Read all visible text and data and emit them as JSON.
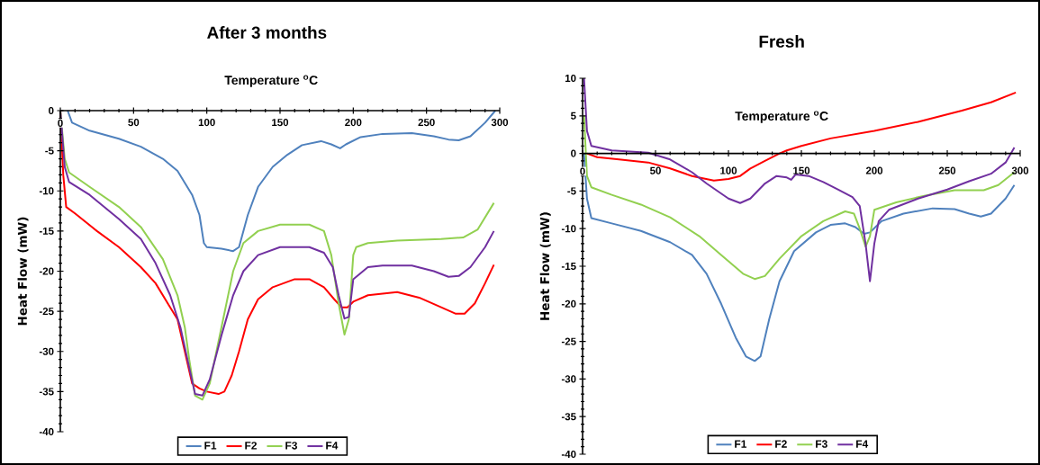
{
  "chart_data": [
    {
      "type": "line",
      "title": "After 3 months",
      "xlabel": "Temperature $^{o}$C",
      "ylabel": "Heat Flow (mW)",
      "xlim": [
        0,
        300
      ],
      "ylim": [
        -40,
        0
      ],
      "xticks": [
        0,
        50,
        100,
        150,
        200,
        250,
        300
      ],
      "yticks": [
        -40,
        -35,
        -30,
        -25,
        -20,
        -15,
        -10,
        -5,
        0
      ],
      "legend": "bottom",
      "series": [
        {
          "name": "F1",
          "color": "#4f81bd",
          "x": [
            5,
            8,
            20,
            40,
            55,
            70,
            80,
            90,
            95,
            98,
            100,
            110,
            118,
            122,
            128,
            135,
            145,
            155,
            165,
            178,
            185,
            191,
            195,
            205,
            220,
            240,
            255,
            265,
            272,
            280,
            290,
            297
          ],
          "values": [
            0,
            -1.5,
            -2.5,
            -3.5,
            -4.5,
            -6,
            -7.5,
            -10.5,
            -13,
            -16.5,
            -17,
            -17.2,
            -17.5,
            -17,
            -13,
            -9.5,
            -7,
            -5.5,
            -4.3,
            -3.8,
            -4.2,
            -4.7,
            -4.2,
            -3.3,
            -2.9,
            -2.8,
            -3.2,
            -3.6,
            -3.7,
            -3.2,
            -1.5,
            0
          ]
        },
        {
          "name": "F2",
          "color": "#ff0000",
          "x": [
            0,
            2,
            4,
            10,
            25,
            40,
            55,
            65,
            75,
            80,
            85,
            90,
            95,
            100,
            108,
            112,
            117,
            122,
            128,
            135,
            145,
            160,
            170,
            180,
            187,
            192,
            196,
            200,
            210,
            230,
            245,
            260,
            270,
            276,
            283,
            290,
            296
          ],
          "values": [
            0,
            -8,
            -12,
            -12.8,
            -15,
            -17,
            -19.5,
            -21.5,
            -24.5,
            -26,
            -30,
            -34,
            -34.6,
            -35,
            -35.3,
            -35,
            -33,
            -30,
            -26,
            -23.5,
            -22,
            -21,
            -21,
            -22,
            -23.5,
            -24.5,
            -24.5,
            -23.8,
            -23,
            -22.6,
            -23.3,
            -24.5,
            -25.3,
            -25.3,
            -24,
            -21.5,
            -19.2
          ]
        },
        {
          "name": "F3",
          "color": "#92d050",
          "x": [
            0,
            3,
            6,
            20,
            40,
            55,
            70,
            80,
            85,
            88,
            92,
            97,
            102,
            110,
            118,
            125,
            135,
            150,
            170,
            180,
            185,
            190,
            194,
            197,
            200,
            202,
            210,
            230,
            260,
            275,
            285,
            296
          ],
          "values": [
            0,
            -6,
            -7.7,
            -9.5,
            -12,
            -14.5,
            -18.5,
            -23,
            -27,
            -31,
            -35.5,
            -36,
            -34,
            -27,
            -20,
            -16.5,
            -15,
            -14.2,
            -14.2,
            -15,
            -18,
            -24,
            -27.9,
            -26,
            -18,
            -17,
            -16.5,
            -16.2,
            -16,
            -15.8,
            -14.8,
            -11.5
          ]
        },
        {
          "name": "F4",
          "color": "#7030a0",
          "x": [
            0,
            3,
            6,
            20,
            40,
            55,
            65,
            75,
            82,
            88,
            92,
            97,
            102,
            110,
            118,
            125,
            135,
            150,
            170,
            180,
            186,
            190,
            194,
            197,
            200,
            210,
            220,
            240,
            255,
            265,
            272,
            280,
            290,
            296
          ],
          "values": [
            0,
            -7,
            -8.9,
            -10.5,
            -13.5,
            -16,
            -19,
            -23,
            -27,
            -32,
            -35.3,
            -35.5,
            -33.5,
            -28,
            -23,
            -20,
            -18,
            -17,
            -17,
            -17.7,
            -19.5,
            -23,
            -25.9,
            -25.7,
            -21,
            -19.5,
            -19.3,
            -19.3,
            -20,
            -20.7,
            -20.6,
            -19.5,
            -17,
            -15
          ]
        }
      ]
    },
    {
      "type": "line",
      "title": "Fresh",
      "xlabel": "Temperature $^{o}$C",
      "ylabel": "Heat Flow (mW)",
      "xlim": [
        0,
        300
      ],
      "ylim": [
        -40,
        10
      ],
      "xticks": [
        0,
        50,
        100,
        150,
        200,
        250,
        300
      ],
      "yticks": [
        -40,
        -35,
        -30,
        -25,
        -20,
        -15,
        -10,
        -5,
        0,
        5,
        10
      ],
      "legend": "bottom",
      "series": [
        {
          "name": "F1",
          "color": "#4f81bd",
          "x": [
            1,
            3,
            6,
            20,
            40,
            60,
            75,
            85,
            95,
            105,
            112,
            118,
            122,
            128,
            135,
            145,
            160,
            170,
            180,
            187,
            193,
            197,
            205,
            220,
            240,
            255,
            265,
            273,
            280,
            290,
            296
          ],
          "values": [
            0,
            -6,
            -8.6,
            -9.3,
            -10.3,
            -11.8,
            -13.5,
            -16,
            -20,
            -24.5,
            -27,
            -27.6,
            -27,
            -22,
            -17,
            -13,
            -10.5,
            -9.5,
            -9.3,
            -9.8,
            -10.7,
            -10.5,
            -9,
            -8,
            -7.3,
            -7.4,
            -8,
            -8.4,
            -8,
            -6,
            -4.2
          ]
        },
        {
          "name": "F2",
          "color": "#ff0000",
          "x": [
            3,
            10,
            25,
            45,
            60,
            75,
            90,
            100,
            108,
            115,
            125,
            135,
            140,
            150,
            170,
            200,
            230,
            260,
            280,
            297
          ],
          "values": [
            0,
            -0.5,
            -0.8,
            -1.2,
            -2,
            -3,
            -3.6,
            -3.4,
            -3,
            -2,
            -1,
            0,
            0.4,
            1,
            2,
            3,
            4.2,
            5.7,
            6.8,
            8.1
          ]
        },
        {
          "name": "F3",
          "color": "#92d050",
          "x": [
            1,
            3,
            6,
            20,
            40,
            60,
            80,
            95,
            110,
            118,
            125,
            135,
            150,
            165,
            180,
            186,
            190,
            194,
            197,
            200,
            215,
            235,
            255,
            275,
            285,
            296
          ],
          "values": [
            5,
            -3,
            -4.5,
            -5.5,
            -6.8,
            -8.5,
            -11,
            -13.5,
            -16,
            -16.7,
            -16.3,
            -14,
            -11,
            -9,
            -7.7,
            -8,
            -10,
            -12.4,
            -11,
            -7.5,
            -6.5,
            -5.6,
            -4.9,
            -4.9,
            -4.2,
            -2.5
          ]
        },
        {
          "name": "F4",
          "color": "#7030a0",
          "x": [
            1,
            3,
            6,
            20,
            45,
            60,
            75,
            85,
            100,
            108,
            115,
            125,
            133,
            140,
            143,
            146,
            155,
            165,
            175,
            185,
            190,
            194,
            197,
            200,
            203,
            210,
            230,
            250,
            265,
            280,
            290,
            296
          ],
          "values": [
            10,
            3,
            1,
            0.4,
            0.1,
            -0.8,
            -2.5,
            -4,
            -6,
            -6.6,
            -6,
            -4,
            -3,
            -3.2,
            -3.5,
            -2.8,
            -3,
            -3.8,
            -4.8,
            -5.8,
            -7,
            -12,
            -17,
            -12,
            -9,
            -7.5,
            -6,
            -4.8,
            -3.7,
            -2.7,
            -1.2,
            0.8
          ]
        }
      ]
    }
  ]
}
